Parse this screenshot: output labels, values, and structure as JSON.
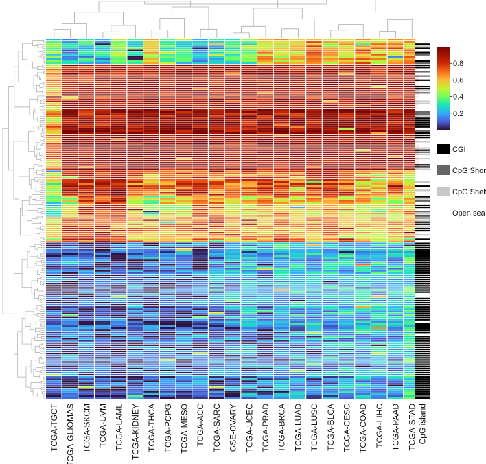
{
  "chart_data": {
    "type": "heatmap",
    "columns": [
      "TCGA-TGCT",
      "TCGA-GLIOMAS",
      "TCGA-SKCM",
      "TCGA-UVM",
      "TCGA-LAML",
      "TCGA-KIDNEY",
      "TCGA-THCA",
      "TCGA-PCPG",
      "TCGA-MESO",
      "TCGA-ACC",
      "TCGA-SARC",
      "GSE-OVARY",
      "TCGA-UCEC",
      "TCGA-PRAD",
      "TCGA-BRCA",
      "TCGA-LUAD",
      "TCGA-LUSC",
      "TCGA-BLCA",
      "TCGA-CESC",
      "TCGA-COAD",
      "TCGA-LIHC",
      "TCGA-PAAD",
      "TCGA-STAD"
    ],
    "annotation_label": "CpG island",
    "colorbar": {
      "ticks": [
        0.8,
        0.6,
        0.4,
        0.2
      ],
      "range": [
        0.0,
        1.0
      ],
      "colormap": "turbo"
    },
    "annotation_legend": [
      {
        "label": "CGI",
        "color": "#000000"
      },
      {
        "label": "CpG Shore",
        "color": "#666666"
      },
      {
        "label": "CpG Shelf",
        "color": "#c8c8c8"
      },
      {
        "label": "Open sea",
        "color": "#ffffff"
      }
    ],
    "row_blocks": [
      {
        "rows": 12,
        "values": [
          0.35,
          0.2,
          0.25,
          0.25,
          0.45,
          0.3,
          0.55,
          0.4,
          0.3,
          0.2,
          0.25,
          0.3,
          0.4,
          0.6,
          0.55,
          0.6,
          0.65,
          0.55,
          0.6,
          0.65,
          0.6,
          0.65,
          0.65
        ]
      },
      {
        "rows": 26,
        "values": [
          0.6,
          0.9,
          0.85,
          0.9,
          0.88,
          0.9,
          0.88,
          0.88,
          0.9,
          0.9,
          0.9,
          0.85,
          0.88,
          0.9,
          0.9,
          0.9,
          0.9,
          0.9,
          0.9,
          0.88,
          0.9,
          0.9,
          0.9
        ]
      },
      {
        "rows": 24,
        "values": [
          0.65,
          0.95,
          0.92,
          0.95,
          0.95,
          0.95,
          0.92,
          0.92,
          0.93,
          0.93,
          0.92,
          0.88,
          0.9,
          0.93,
          0.93,
          0.93,
          0.93,
          0.93,
          0.93,
          0.93,
          0.92,
          0.93,
          0.93
        ]
      },
      {
        "rows": 12,
        "values": [
          0.55,
          0.85,
          0.8,
          0.85,
          0.9,
          0.7,
          0.65,
          0.7,
          0.75,
          0.8,
          0.75,
          0.7,
          0.72,
          0.75,
          0.75,
          0.7,
          0.75,
          0.78,
          0.75,
          0.6,
          0.55,
          0.65,
          0.6
        ]
      },
      {
        "rows": 10,
        "values": [
          0.3,
          0.5,
          0.75,
          0.8,
          0.85,
          0.55,
          0.45,
          0.5,
          0.5,
          0.75,
          0.65,
          0.55,
          0.55,
          0.6,
          0.62,
          0.55,
          0.6,
          0.62,
          0.6,
          0.55,
          0.5,
          0.55,
          0.6
        ]
      },
      {
        "rows": 12,
        "values": [
          0.55,
          0.8,
          0.78,
          0.8,
          0.7,
          0.62,
          0.6,
          0.62,
          0.62,
          0.7,
          0.7,
          0.62,
          0.65,
          0.65,
          0.68,
          0.62,
          0.65,
          0.68,
          0.65,
          0.6,
          0.55,
          0.6,
          0.62
        ]
      },
      {
        "rows": 40,
        "values": [
          0.08,
          0.08,
          0.08,
          0.08,
          0.08,
          0.12,
          0.12,
          0.12,
          0.12,
          0.12,
          0.15,
          0.18,
          0.2,
          0.15,
          0.25,
          0.22,
          0.22,
          0.22,
          0.25,
          0.25,
          0.25,
          0.22,
          0.3
        ]
      },
      {
        "rows": 34,
        "values": [
          0.08,
          0.1,
          0.1,
          0.1,
          0.08,
          0.1,
          0.1,
          0.1,
          0.12,
          0.12,
          0.12,
          0.12,
          0.15,
          0.12,
          0.15,
          0.18,
          0.15,
          0.18,
          0.2,
          0.22,
          0.22,
          0.18,
          0.3
        ]
      }
    ]
  }
}
